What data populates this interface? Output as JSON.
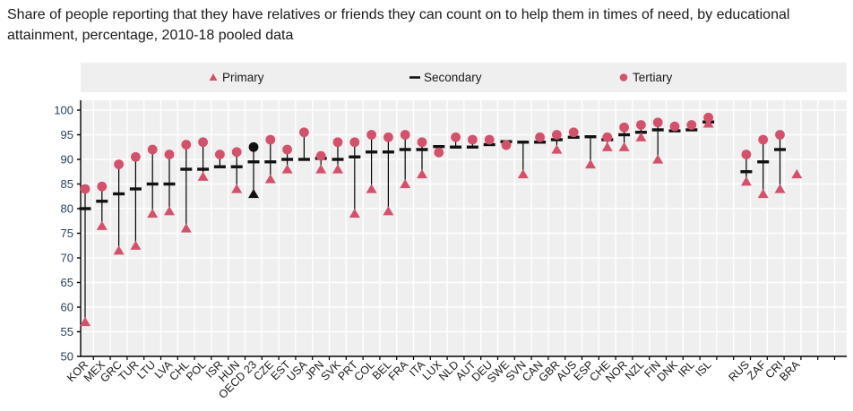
{
  "colors": {
    "accent": "#d2526b",
    "marker_black": "#111111",
    "stem": "#000000",
    "plot_bg": "#efefef",
    "legend_bg": "#efefef",
    "grid": "#ffffff",
    "axis_line": "#000000",
    "y_label": "#2b4257",
    "x_label": "#1a1a1a"
  },
  "legend": [
    {
      "label": "Primary",
      "marker": "triangle"
    },
    {
      "label": "Secondary",
      "marker": "dash"
    },
    {
      "label": "Tertiary",
      "marker": "circle"
    }
  ],
  "chart_data": {
    "type": "scatter",
    "title": "Share of people reporting that they have relatives or friends they can count on to help them in times of need, by educational attainment, percentage, 2010-18 pooled data",
    "xlabel": "",
    "ylabel": "",
    "ylim": [
      50,
      100
    ],
    "ytick_step": 5,
    "grid": true,
    "legend_position": "top",
    "highlight_category": "OECD 23",
    "gap_after_category": "ISL",
    "categories": [
      "KOR",
      "MEX",
      "GRC",
      "TUR",
      "LTU",
      "LVA",
      "CHL",
      "POL",
      "ISR",
      "HUN",
      "OECD 23",
      "CZE",
      "EST",
      "USA",
      "JPN",
      "SVK",
      "PRT",
      "COL",
      "BEL",
      "FRA",
      "ITA",
      "LUX",
      "NLD",
      "AUT",
      "DEU",
      "SWE",
      "SVN",
      "CAN",
      "GBR",
      "AUS",
      "ESP",
      "CHE",
      "NOR",
      "NZL",
      "FIN",
      "DNK",
      "IRL",
      "ISL",
      "RUS",
      "ZAF",
      "CRI",
      "BRA"
    ],
    "series": [
      {
        "name": "Primary",
        "marker": "triangle",
        "values": [
          57,
          76.5,
          71.5,
          72.5,
          79,
          79.5,
          76,
          86.5,
          null,
          84,
          83,
          86,
          88,
          null,
          88,
          88,
          79,
          84,
          79.5,
          85,
          87,
          null,
          null,
          null,
          null,
          null,
          87,
          null,
          92,
          null,
          89,
          92.5,
          92.5,
          94.5,
          90,
          null,
          null,
          97.3,
          85.5,
          83,
          84,
          87
        ]
      },
      {
        "name": "Secondary",
        "marker": "dash",
        "values": [
          80,
          81.5,
          83,
          84,
          85,
          85,
          88,
          88,
          88.5,
          88.5,
          89.5,
          89.5,
          90,
          90,
          90.2,
          90,
          90.5,
          91.5,
          91.5,
          92,
          92,
          92.6,
          92.5,
          92.5,
          93,
          93.6,
          93.5,
          93.5,
          94,
          94.5,
          94.6,
          94,
          95,
          95.5,
          96,
          95.8,
          96,
          97.6,
          87.5,
          89.5,
          92,
          null
        ]
      },
      {
        "name": "Tertiary",
        "marker": "circle",
        "values": [
          84,
          84.5,
          89,
          90.5,
          92,
          91,
          93,
          93.5,
          91,
          91.5,
          92.5,
          94,
          92,
          95.5,
          90.7,
          93.5,
          93.5,
          95,
          94.5,
          95,
          93.5,
          91.4,
          94.5,
          94,
          94,
          92.9,
          null,
          94.5,
          95,
          95.5,
          null,
          94.5,
          96.5,
          97,
          97.5,
          96.7,
          97,
          98.5,
          91,
          94,
          95,
          null
        ]
      }
    ]
  }
}
